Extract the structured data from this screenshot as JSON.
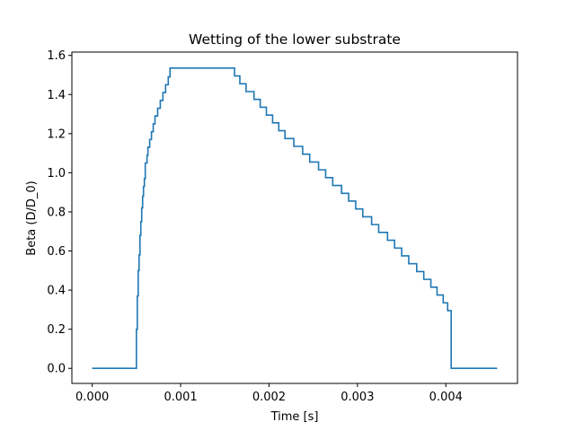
{
  "chart_data": {
    "type": "line",
    "title": "Wetting of the lower substrate",
    "xlabel": "Time [s]",
    "ylabel": "Beta (D/D_0)",
    "xlim": [
      -0.00023,
      0.00481
    ],
    "ylim": [
      -0.077,
      1.617
    ],
    "x_ticks": [
      0.0,
      0.001,
      0.002,
      0.003,
      0.004
    ],
    "x_tick_labels": [
      "0.000",
      "0.001",
      "0.002",
      "0.003",
      "0.004"
    ],
    "y_ticks": [
      0.0,
      0.2,
      0.4,
      0.6,
      0.8,
      1.0,
      1.2,
      1.4,
      1.6
    ],
    "y_tick_labels": [
      "0.0",
      "0.2",
      "0.4",
      "0.6",
      "0.8",
      "1.0",
      "1.2",
      "1.4",
      "1.6"
    ],
    "grid": false,
    "line_color": "#1f77b4",
    "series": [
      {
        "step": true,
        "x": [
          0.0,
          0.00048,
          0.0005,
          0.00051,
          0.00052,
          0.00053,
          0.00054,
          0.00055,
          0.00056,
          0.00057,
          0.00058,
          0.00059,
          0.0006,
          0.00062,
          0.00063,
          0.00065,
          0.00067,
          0.00069,
          0.00071,
          0.00074,
          0.00077,
          0.0008,
          0.00083,
          0.00086,
          0.00088,
          0.00091,
          0.00094,
          0.00098,
          0.00102,
          0.00106,
          0.00161,
          0.00167,
          0.00174,
          0.00183,
          0.0019,
          0.00197,
          0.00204,
          0.00211,
          0.00218,
          0.00228,
          0.00238,
          0.00246,
          0.00256,
          0.00264,
          0.00272,
          0.00282,
          0.0029,
          0.00298,
          0.00306,
          0.00316,
          0.00324,
          0.00334,
          0.00342,
          0.0035,
          0.00358,
          0.00367,
          0.00375,
          0.00383,
          0.0039,
          0.00397,
          0.00402,
          0.00406,
          0.00458
        ],
        "y": [
          0.0,
          0.0,
          0.2,
          0.37,
          0.5,
          0.58,
          0.68,
          0.75,
          0.82,
          0.88,
          0.93,
          0.97,
          1.05,
          1.09,
          1.13,
          1.17,
          1.21,
          1.25,
          1.29,
          1.33,
          1.37,
          1.41,
          1.45,
          1.49,
          1.535,
          1.535,
          1.535,
          1.535,
          1.535,
          1.535,
          1.495,
          1.455,
          1.415,
          1.375,
          1.335,
          1.295,
          1.255,
          1.215,
          1.175,
          1.135,
          1.095,
          1.055,
          1.015,
          0.975,
          0.935,
          0.895,
          0.855,
          0.815,
          0.775,
          0.735,
          0.695,
          0.655,
          0.615,
          0.575,
          0.535,
          0.495,
          0.455,
          0.415,
          0.375,
          0.335,
          0.295,
          0.0,
          0.0
        ]
      }
    ]
  }
}
